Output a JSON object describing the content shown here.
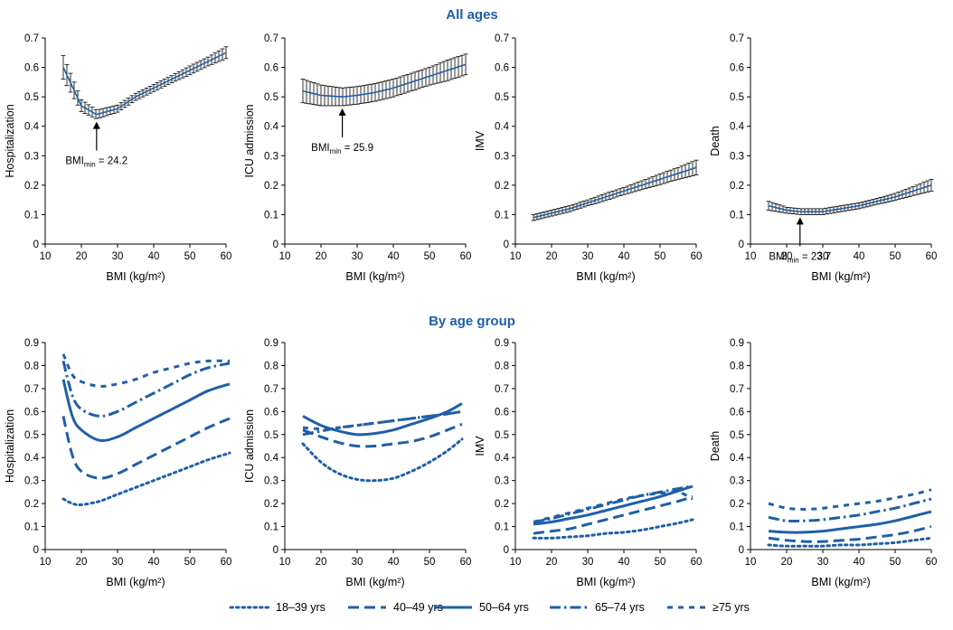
{
  "sections": {
    "top_title": "All ages",
    "bottom_title": "By age group"
  },
  "axes": {
    "x_label": "BMI (kg/m²)",
    "x_ticks": [
      10,
      20,
      30,
      40,
      50,
      60
    ],
    "top_y_ticks": [
      0,
      0.1,
      0.2,
      0.3,
      0.4,
      0.5,
      0.6,
      0.7
    ],
    "bottom_y_ticks": [
      0,
      0.1,
      0.2,
      0.3,
      0.4,
      0.5,
      0.6,
      0.7,
      0.8,
      0.9
    ]
  },
  "colors": {
    "series": "#1f5fa8",
    "axis": "#000000",
    "title": "#1f5fa8"
  },
  "legend": {
    "placement": "bottom",
    "items": [
      {
        "label": "18–39 yrs",
        "dash": "dot"
      },
      {
        "label": "40–49 yrs",
        "dash": "dash"
      },
      {
        "label": "50–64 yrs",
        "dash": "solid"
      },
      {
        "label": "65–74 yrs",
        "dash": "dashdot"
      },
      {
        "label": "≥75 yrs",
        "dash": "longdot"
      }
    ]
  },
  "chart_data": [
    {
      "type": "line",
      "section": "All ages",
      "ylabel": "Hospitalization",
      "xlim": [
        10,
        60
      ],
      "ylim": [
        0,
        0.7
      ],
      "error_bars": true,
      "x": [
        15,
        20,
        24.2,
        30,
        35,
        40,
        45,
        50,
        55,
        60
      ],
      "values": [
        0.6,
        0.47,
        0.44,
        0.46,
        0.5,
        0.53,
        0.56,
        0.59,
        0.62,
        0.65
      ],
      "err": [
        0.04,
        0.02,
        0.015,
        0.012,
        0.012,
        0.012,
        0.012,
        0.015,
        0.015,
        0.02
      ],
      "annotation": {
        "prefix": "BMI",
        "sub": "min",
        "suffix": " = 24.2",
        "x": 24.2
      }
    },
    {
      "type": "line",
      "section": "All ages",
      "ylabel": "ICU admission",
      "xlim": [
        10,
        60
      ],
      "ylim": [
        0,
        0.7
      ],
      "error_bars": true,
      "x": [
        15,
        20,
        25.9,
        30,
        35,
        40,
        45,
        50,
        55,
        60
      ],
      "values": [
        0.52,
        0.505,
        0.5,
        0.505,
        0.515,
        0.53,
        0.55,
        0.57,
        0.59,
        0.61
      ],
      "err": [
        0.04,
        0.035,
        0.03,
        0.03,
        0.03,
        0.03,
        0.03,
        0.03,
        0.035,
        0.035
      ],
      "annotation": {
        "prefix": "BMI",
        "sub": "min",
        "suffix": " = 25.9",
        "x": 25.9
      }
    },
    {
      "type": "line",
      "section": "All ages",
      "ylabel": "IMV",
      "xlim": [
        10,
        60
      ],
      "ylim": [
        0,
        0.7
      ],
      "error_bars": true,
      "x": [
        15,
        20,
        25,
        30,
        35,
        40,
        45,
        50,
        55,
        60
      ],
      "values": [
        0.09,
        0.105,
        0.12,
        0.14,
        0.16,
        0.18,
        0.2,
        0.22,
        0.24,
        0.26
      ],
      "err": [
        0.01,
        0.01,
        0.01,
        0.01,
        0.012,
        0.012,
        0.015,
        0.018,
        0.02,
        0.025
      ]
    },
    {
      "type": "line",
      "section": "All ages",
      "ylabel": "Death",
      "xlim": [
        10,
        60
      ],
      "ylim": [
        0,
        0.7
      ],
      "error_bars": true,
      "x": [
        15,
        20,
        23.7,
        30,
        35,
        40,
        45,
        50,
        55,
        60
      ],
      "values": [
        0.13,
        0.115,
        0.11,
        0.11,
        0.12,
        0.13,
        0.145,
        0.16,
        0.18,
        0.2
      ],
      "err": [
        0.015,
        0.01,
        0.01,
        0.01,
        0.01,
        0.01,
        0.01,
        0.012,
        0.015,
        0.02
      ],
      "annotation": {
        "prefix": "BMI",
        "sub": "min",
        "suffix": " = 23.7",
        "x": 23.7
      }
    },
    {
      "type": "line",
      "section": "By age group",
      "ylabel": "Hospitalization",
      "xlim": [
        10,
        60
      ],
      "ylim": [
        0,
        0.9
      ],
      "x": [
        15,
        17.5,
        20,
        25,
        30,
        35,
        40,
        45,
        50,
        55,
        61
      ],
      "series": [
        {
          "name": "18–39 yrs",
          "values": [
            0.22,
            0.2,
            0.195,
            0.21,
            0.24,
            0.27,
            0.3,
            0.33,
            0.36,
            0.39,
            0.42
          ]
        },
        {
          "name": "40–49 yrs",
          "values": [
            0.58,
            0.41,
            0.34,
            0.31,
            0.33,
            0.37,
            0.41,
            0.45,
            0.49,
            0.53,
            0.57
          ]
        },
        {
          "name": "50–64 yrs",
          "values": [
            0.74,
            0.58,
            0.52,
            0.475,
            0.49,
            0.53,
            0.57,
            0.61,
            0.65,
            0.69,
            0.72
          ]
        },
        {
          "name": "65–74 yrs",
          "values": [
            0.82,
            0.67,
            0.61,
            0.58,
            0.6,
            0.64,
            0.68,
            0.72,
            0.76,
            0.79,
            0.81
          ]
        },
        {
          "name": "≥75 yrs",
          "values": [
            0.85,
            0.76,
            0.73,
            0.71,
            0.72,
            0.74,
            0.77,
            0.79,
            0.81,
            0.82,
            0.82
          ]
        }
      ]
    },
    {
      "type": "line",
      "section": "By age group",
      "ylabel": "ICU admission",
      "xlim": [
        10,
        60
      ],
      "ylim": [
        0,
        0.9
      ],
      "x": [
        15,
        20,
        25,
        30,
        35,
        40,
        45,
        50,
        55,
        59
      ],
      "series": [
        {
          "name": "18–39 yrs",
          "values": [
            0.46,
            0.38,
            0.33,
            0.305,
            0.3,
            0.31,
            0.34,
            0.38,
            0.43,
            0.48
          ]
        },
        {
          "name": "40–49 yrs",
          "values": [
            0.52,
            0.49,
            0.465,
            0.45,
            0.45,
            0.46,
            0.47,
            0.49,
            0.52,
            0.545
          ]
        },
        {
          "name": "50–64 yrs",
          "values": [
            0.58,
            0.54,
            0.515,
            0.5,
            0.505,
            0.52,
            0.545,
            0.57,
            0.6,
            0.635
          ]
        },
        {
          "name": "65–74 yrs",
          "values": [
            0.5,
            0.515,
            0.53,
            0.54,
            0.55,
            0.56,
            0.57,
            0.58,
            0.59,
            0.6
          ]
        },
        {
          "name": "≥75 yrs",
          "values": [
            0.53,
            0.525,
            0.53,
            0.54,
            0.55,
            0.56,
            0.57,
            0.58,
            0.59,
            0.6
          ]
        }
      ]
    },
    {
      "type": "line",
      "section": "By age group",
      "ylabel": "IMV",
      "xlim": [
        10,
        60
      ],
      "ylim": [
        0,
        0.9
      ],
      "x": [
        15,
        20,
        25,
        30,
        35,
        40,
        45,
        50,
        55,
        59
      ],
      "series": [
        {
          "name": "18–39 yrs",
          "values": [
            0.05,
            0.05,
            0.055,
            0.06,
            0.07,
            0.075,
            0.085,
            0.1,
            0.115,
            0.13
          ]
        },
        {
          "name": "40–49 yrs",
          "values": [
            0.07,
            0.08,
            0.09,
            0.11,
            0.13,
            0.15,
            0.17,
            0.19,
            0.21,
            0.23
          ]
        },
        {
          "name": "50–64 yrs",
          "values": [
            0.11,
            0.12,
            0.135,
            0.15,
            0.17,
            0.19,
            0.21,
            0.23,
            0.255,
            0.275
          ]
        },
        {
          "name": "65–74 yrs",
          "values": [
            0.12,
            0.135,
            0.155,
            0.175,
            0.195,
            0.215,
            0.235,
            0.25,
            0.265,
            0.275
          ]
        },
        {
          "name": "≥75 yrs",
          "values": [
            0.12,
            0.14,
            0.16,
            0.18,
            0.2,
            0.22,
            0.235,
            0.245,
            0.25,
            0.22
          ]
        }
      ]
    },
    {
      "type": "line",
      "section": "By age group",
      "ylabel": "Death",
      "xlim": [
        10,
        60
      ],
      "ylim": [
        0,
        0.9
      ],
      "x": [
        15,
        20,
        25,
        30,
        35,
        40,
        45,
        50,
        55,
        60
      ],
      "series": [
        {
          "name": "18–39 yrs",
          "values": [
            0.02,
            0.015,
            0.015,
            0.015,
            0.02,
            0.02,
            0.025,
            0.03,
            0.04,
            0.05
          ]
        },
        {
          "name": "40–49 yrs",
          "values": [
            0.05,
            0.04,
            0.035,
            0.035,
            0.04,
            0.045,
            0.055,
            0.065,
            0.08,
            0.1
          ]
        },
        {
          "name": "50–64 yrs",
          "values": [
            0.08,
            0.075,
            0.075,
            0.08,
            0.09,
            0.1,
            0.11,
            0.125,
            0.145,
            0.165
          ]
        },
        {
          "name": "65–74 yrs",
          "values": [
            0.14,
            0.125,
            0.125,
            0.13,
            0.14,
            0.15,
            0.165,
            0.18,
            0.2,
            0.22
          ]
        },
        {
          "name": "≥75 yrs",
          "values": [
            0.2,
            0.18,
            0.175,
            0.18,
            0.19,
            0.2,
            0.21,
            0.225,
            0.24,
            0.26
          ]
        }
      ]
    }
  ]
}
